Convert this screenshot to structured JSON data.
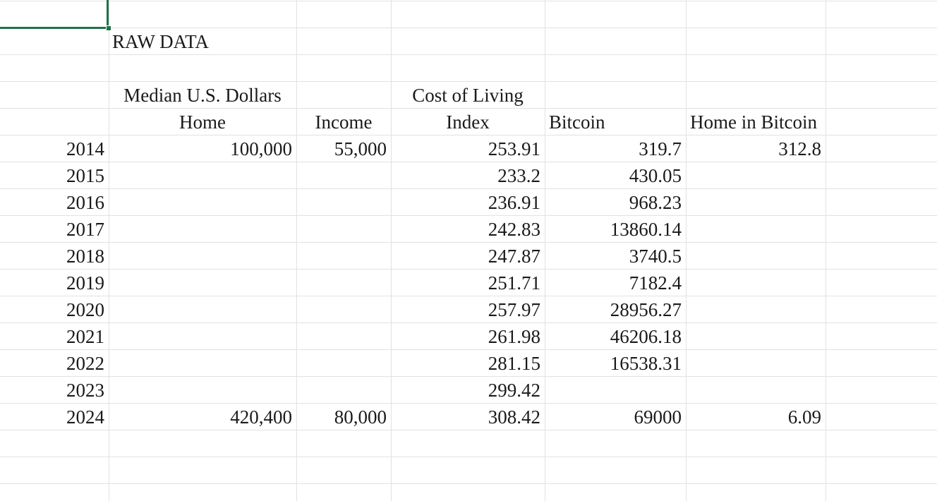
{
  "sheet": {
    "title_cell": "RAW DATA",
    "headers": {
      "median_usd": "Median U.S. Dollars",
      "cost_of_living": "Cost of Living",
      "home": "Home",
      "income": "Income",
      "index": "Index",
      "bitcoin": "Bitcoin",
      "home_in_bitcoin": "Home in Bitcoin"
    },
    "rows": [
      {
        "year": "2014",
        "home": "100,000",
        "income": "55,000",
        "index": "253.91",
        "bitcoin": "319.7",
        "home_in_bitcoin": "312.8"
      },
      {
        "year": "2015",
        "home": "",
        "income": "",
        "index": "233.2",
        "bitcoin": "430.05",
        "home_in_bitcoin": ""
      },
      {
        "year": "2016",
        "home": "",
        "income": "",
        "index": "236.91",
        "bitcoin": "968.23",
        "home_in_bitcoin": ""
      },
      {
        "year": "2017",
        "home": "",
        "income": "",
        "index": "242.83",
        "bitcoin": "13860.14",
        "home_in_bitcoin": ""
      },
      {
        "year": "2018",
        "home": "",
        "income": "",
        "index": "247.87",
        "bitcoin": "3740.5",
        "home_in_bitcoin": ""
      },
      {
        "year": "2019",
        "home": "",
        "income": "",
        "index": "251.71",
        "bitcoin": "7182.4",
        "home_in_bitcoin": ""
      },
      {
        "year": "2020",
        "home": "",
        "income": "",
        "index": "257.97",
        "bitcoin": "28956.27",
        "home_in_bitcoin": ""
      },
      {
        "year": "2021",
        "home": "",
        "income": "",
        "index": "261.98",
        "bitcoin": "46206.18",
        "home_in_bitcoin": ""
      },
      {
        "year": "2022",
        "home": "",
        "income": "",
        "index": "281.15",
        "bitcoin": "16538.31",
        "home_in_bitcoin": ""
      },
      {
        "year": "2023",
        "home": "",
        "income": "",
        "index": "299.42",
        "bitcoin": "",
        "home_in_bitcoin": ""
      },
      {
        "year": "2024",
        "home": "420,400",
        "income": "80,000",
        "index": "308.42",
        "bitcoin": "69000",
        "home_in_bitcoin": "6.09"
      }
    ],
    "colors": {
      "selection": "#217346",
      "gridline": "#e2e2e2"
    }
  }
}
